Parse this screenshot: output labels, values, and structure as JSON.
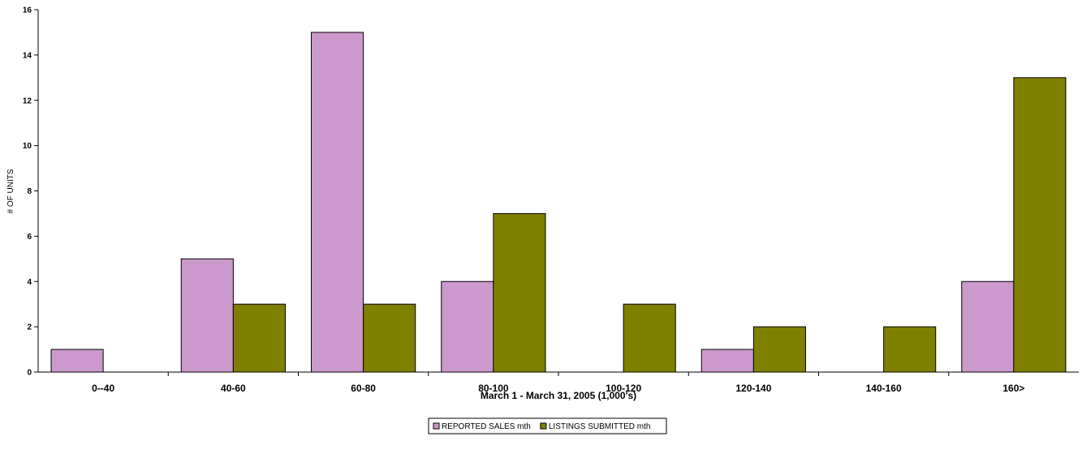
{
  "chart_data": {
    "type": "bar",
    "categories": [
      "0--40",
      "40-60",
      "60-80",
      "80-100",
      "100-120",
      "120-140",
      "140-160",
      "160>"
    ],
    "series": [
      {
        "name": "REPORTED SALES mth",
        "values": [
          1,
          5,
          15,
          4,
          0,
          1,
          0,
          4
        ],
        "color": "#cc99cc"
      },
      {
        "name": "LISTINGS SUBMITTED mth",
        "values": [
          0,
          3,
          3,
          7,
          3,
          2,
          2,
          13
        ],
        "color": "#808000"
      }
    ],
    "xlabel": "March 1 - March 31, 2005 (1,000's)",
    "ylabel": "# OF UNITS",
    "ylim": [
      0,
      16
    ],
    "yticks": [
      0,
      2,
      4,
      6,
      8,
      10,
      12,
      14,
      16
    ],
    "grid": false,
    "legend_position": "bottom-center"
  }
}
